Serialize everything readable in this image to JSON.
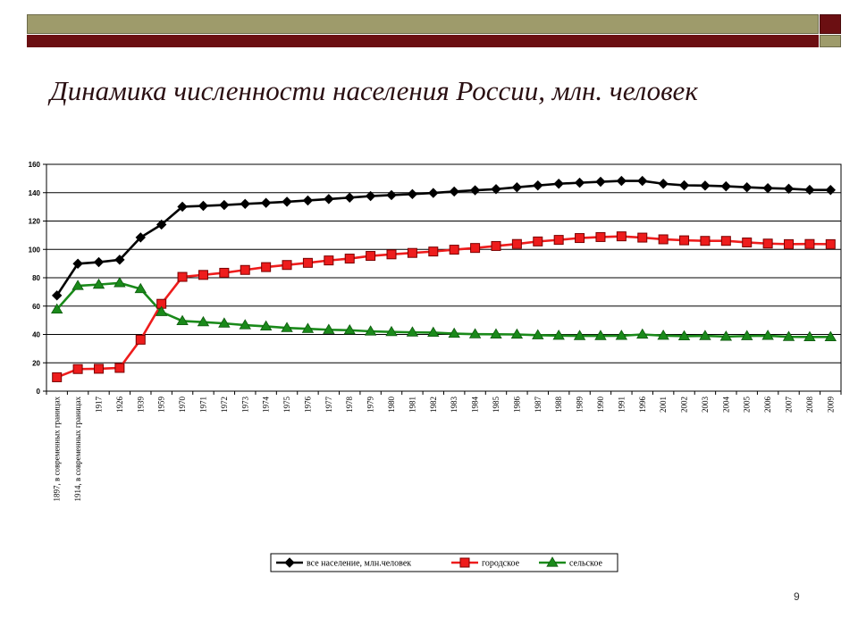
{
  "title": "Динамика численности населения России, млн. человек",
  "slide_number": "9",
  "colors": {
    "top_bar_olive": "#9e9b6b",
    "top_bar_maroon": "#6b0f12",
    "series_total": "#000000",
    "series_urban": "#ee1c1c",
    "series_rural": "#1a8a1a"
  },
  "chart_data": {
    "type": "line",
    "title": "",
    "xlabel": "",
    "ylabel": "",
    "ylim": [
      0,
      160
    ],
    "yticks": [
      0,
      20,
      40,
      60,
      80,
      100,
      120,
      140,
      160
    ],
    "grid": true,
    "legend_position": "bottom",
    "categories": [
      "1897, в современных границах",
      "1914, в современных границах",
      "1917",
      "1926",
      "1939",
      "1959",
      "1970",
      "1971",
      "1972",
      "1973",
      "1974",
      "1975",
      "1976",
      "1977",
      "1978",
      "1979",
      "1980",
      "1981",
      "1982",
      "1983",
      "1984",
      "1985",
      "1986",
      "1987",
      "1988",
      "1989",
      "1990",
      "1991",
      "1996",
      "2001",
      "2002",
      "2003",
      "2004",
      "2005",
      "2006",
      "2007",
      "2008",
      "2009"
    ],
    "series": [
      {
        "name": "все население, млн.человек",
        "marker": "diamond",
        "color": "#000000",
        "values": [
          67.5,
          89.9,
          91.0,
          92.7,
          108.4,
          117.5,
          130.1,
          130.7,
          131.3,
          132.1,
          132.8,
          133.6,
          134.5,
          135.5,
          136.5,
          137.6,
          138.3,
          139.0,
          139.8,
          140.8,
          141.7,
          142.5,
          143.8,
          145.1,
          146.3,
          147.0,
          147.7,
          148.3,
          148.3,
          146.3,
          145.2,
          145.0,
          144.5,
          143.8,
          143.2,
          142.8,
          142.0,
          141.9
        ]
      },
      {
        "name": "городское",
        "marker": "square",
        "color": "#ee1c1c",
        "values": [
          9.8,
          15.6,
          15.8,
          16.4,
          36.3,
          61.6,
          80.6,
          82.0,
          83.5,
          85.5,
          87.5,
          89.0,
          90.5,
          92.2,
          93.5,
          95.4,
          96.5,
          97.5,
          98.5,
          99.8,
          101.0,
          102.4,
          103.8,
          105.6,
          106.7,
          108.0,
          108.7,
          109.2,
          108.3,
          107.1,
          106.4,
          106.0,
          106.0,
          104.9,
          104.1,
          103.7,
          103.8,
          103.7
        ]
      },
      {
        "name": "сельское",
        "marker": "triangle",
        "color": "#1a8a1a",
        "values": [
          57.7,
          74.3,
          75.2,
          76.3,
          72.1,
          55.9,
          49.5,
          48.7,
          47.8,
          46.6,
          45.7,
          44.6,
          44.0,
          43.3,
          43.0,
          42.2,
          41.8,
          41.5,
          41.3,
          40.6,
          40.2,
          40.1,
          40.0,
          39.5,
          39.2,
          39.0,
          39.0,
          39.1,
          40.0,
          39.2,
          38.8,
          39.0,
          38.5,
          38.9,
          39.1,
          38.3,
          38.2,
          38.2
        ]
      }
    ]
  }
}
